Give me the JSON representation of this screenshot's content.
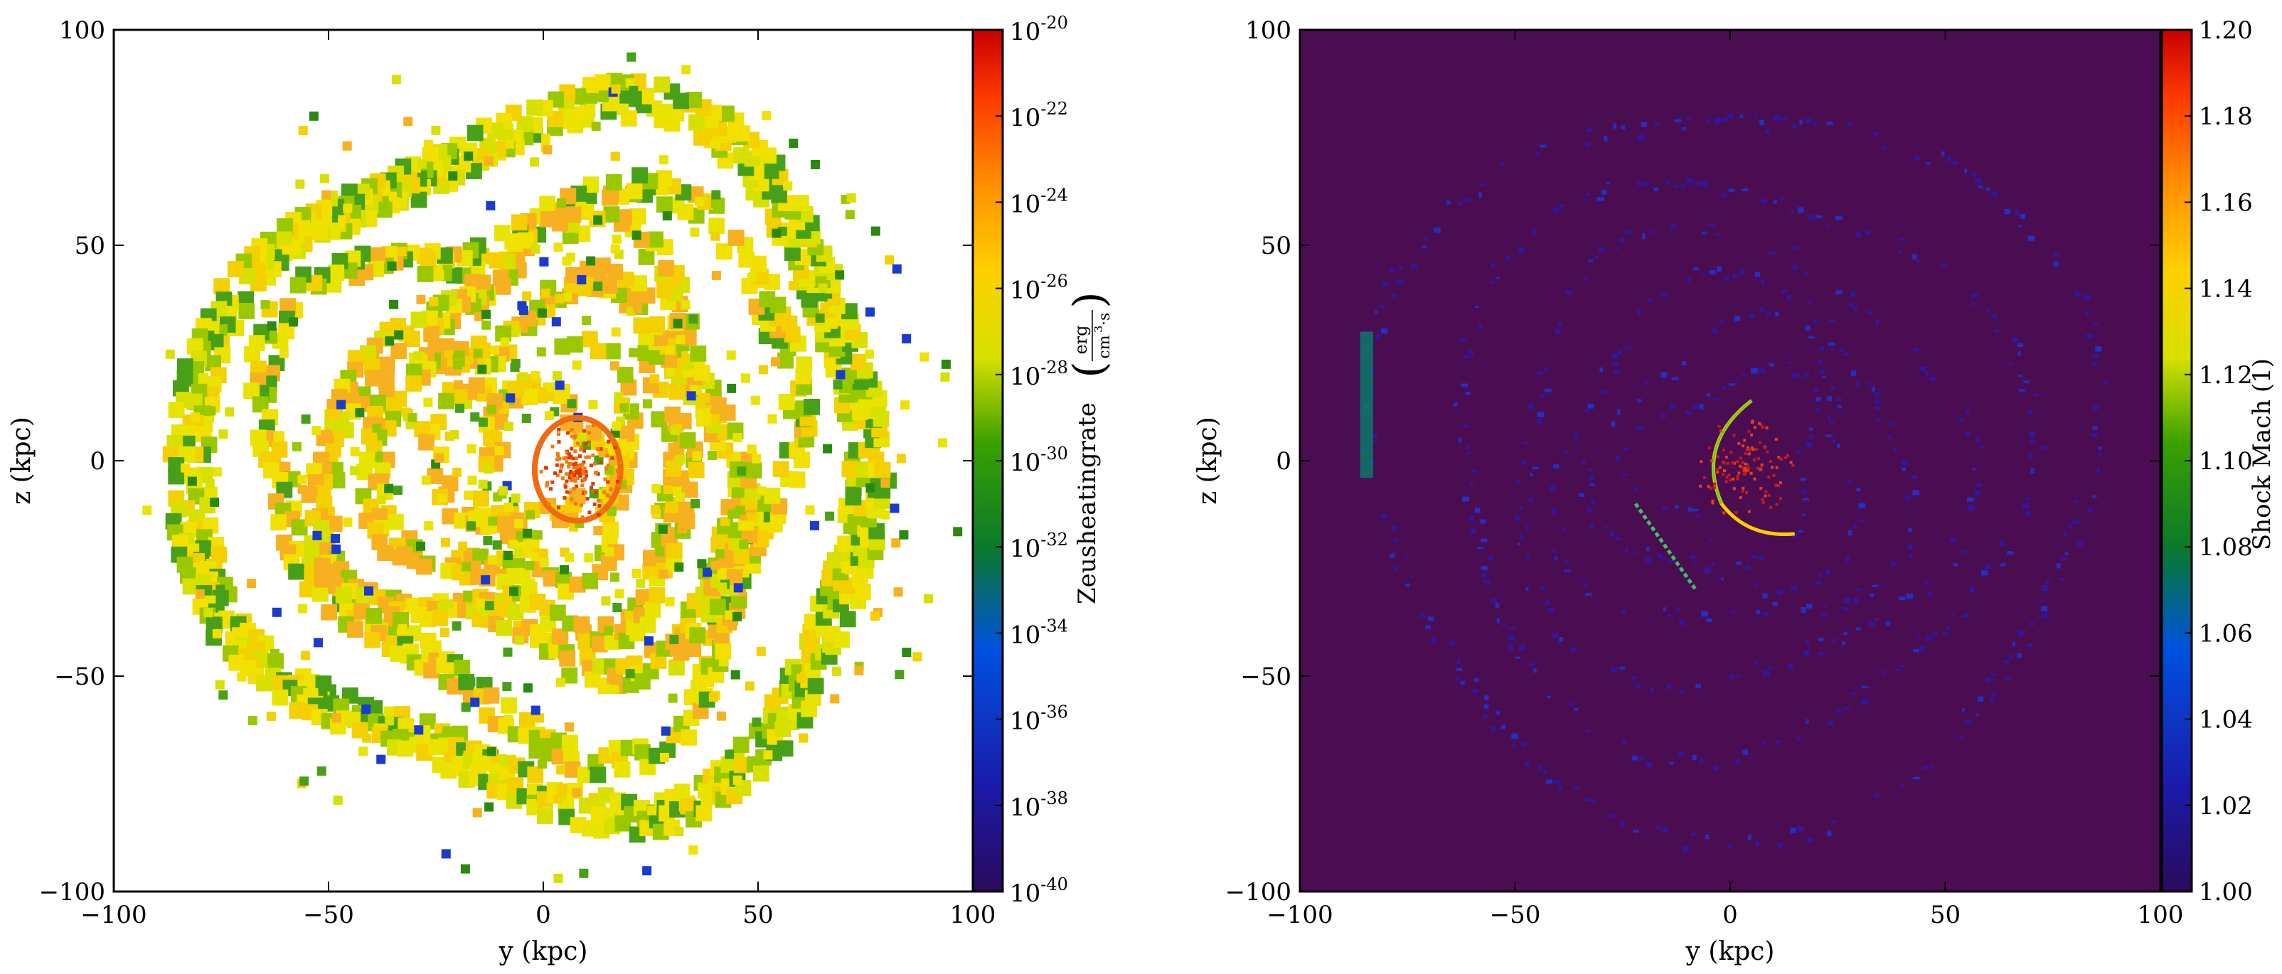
{
  "chart_data": [
    {
      "type": "heatmap",
      "xlabel": "y  (kpc)",
      "ylabel": "z  (kpc)",
      "xlim": [
        -100,
        100
      ],
      "ylim": [
        -100,
        100
      ],
      "x_ticks": [
        "−100",
        "−50",
        "0",
        "50",
        "100"
      ],
      "y_ticks": [
        "−100",
        "−50",
        "0",
        "50",
        "100"
      ],
      "background": "#ffffff",
      "colorbar": {
        "label": "Zeusheatingrate",
        "unit_numerator": "erg",
        "unit_denominator": "cm",
        "unit_denominator_exp": "3",
        "unit_denominator_tail": "·s",
        "scale": "log",
        "range": [
          1e-40,
          1e-20
        ],
        "tick_base": "10",
        "tick_exponents": [
          "-40",
          "-38",
          "-36",
          "-34",
          "-32",
          "-30",
          "-28",
          "-26",
          "-24",
          "-22",
          "-20"
        ],
        "colormap": "jet"
      },
      "structure": {
        "description_kind": "spiral ring field",
        "outer_ring_radius_kpc": 80,
        "inner_core_radius_kpc": 8
      }
    },
    {
      "type": "heatmap",
      "xlabel": "y  (kpc)",
      "ylabel": "z  (kpc)",
      "xlim": [
        -100,
        100
      ],
      "ylim": [
        -100,
        100
      ],
      "x_ticks": [
        "−100",
        "−50",
        "0",
        "50",
        "100"
      ],
      "y_ticks": [
        "−100",
        "−50",
        "0",
        "50",
        "100"
      ],
      "background": "#4b0d52",
      "colorbar": {
        "label": "Shock Mach",
        "unit": "(1)",
        "scale": "linear",
        "range": [
          1.0,
          1.2
        ],
        "ticks": [
          "1.00",
          "1.02",
          "1.04",
          "1.06",
          "1.08",
          "1.10",
          "1.12",
          "1.14",
          "1.16",
          "1.18",
          "1.20"
        ],
        "colormap": "jet"
      }
    }
  ],
  "colors": {
    "jet": [
      "#2b0a5c",
      "#1a1aa8",
      "#0050e0",
      "#0a7a2a",
      "#3aa000",
      "#d8e000",
      "#ffd000",
      "#ff9000",
      "#ff3a00",
      "#c80000"
    ],
    "ring_yellow": "#f2e000",
    "ring_orange": "#f7b020",
    "ring_green": "#48a018",
    "mach_bg": "#4b0d52",
    "mach_blue": "#1a2ad0"
  }
}
